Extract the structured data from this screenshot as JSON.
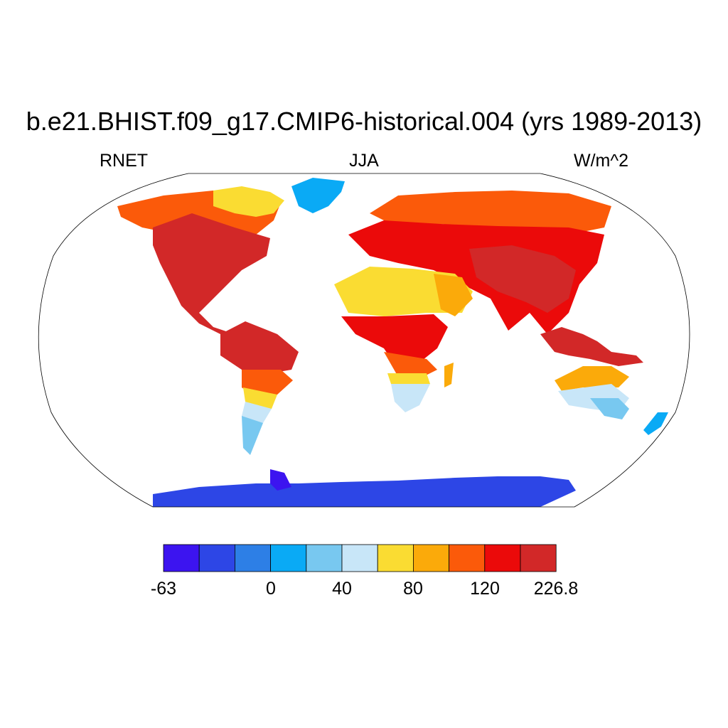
{
  "title": "b.e21.BHIST.f09_g17.CMIP6-historical.004 (yrs 1989-2013)",
  "left_string": "RNET",
  "center_string": "JJA",
  "right_string": "W/m^2",
  "colorbar": {
    "colors": [
      "#3c14f0",
      "#2d46e6",
      "#2d7fe6",
      "#0aaaf5",
      "#78c8f0",
      "#c8e6f8",
      "#fadc32",
      "#fbaa0a",
      "#fb5a0a",
      "#eb0a0a",
      "#d22828"
    ],
    "tick_labels": [
      "-63",
      "0",
      "40",
      "80",
      "120",
      "226.8"
    ]
  }
}
